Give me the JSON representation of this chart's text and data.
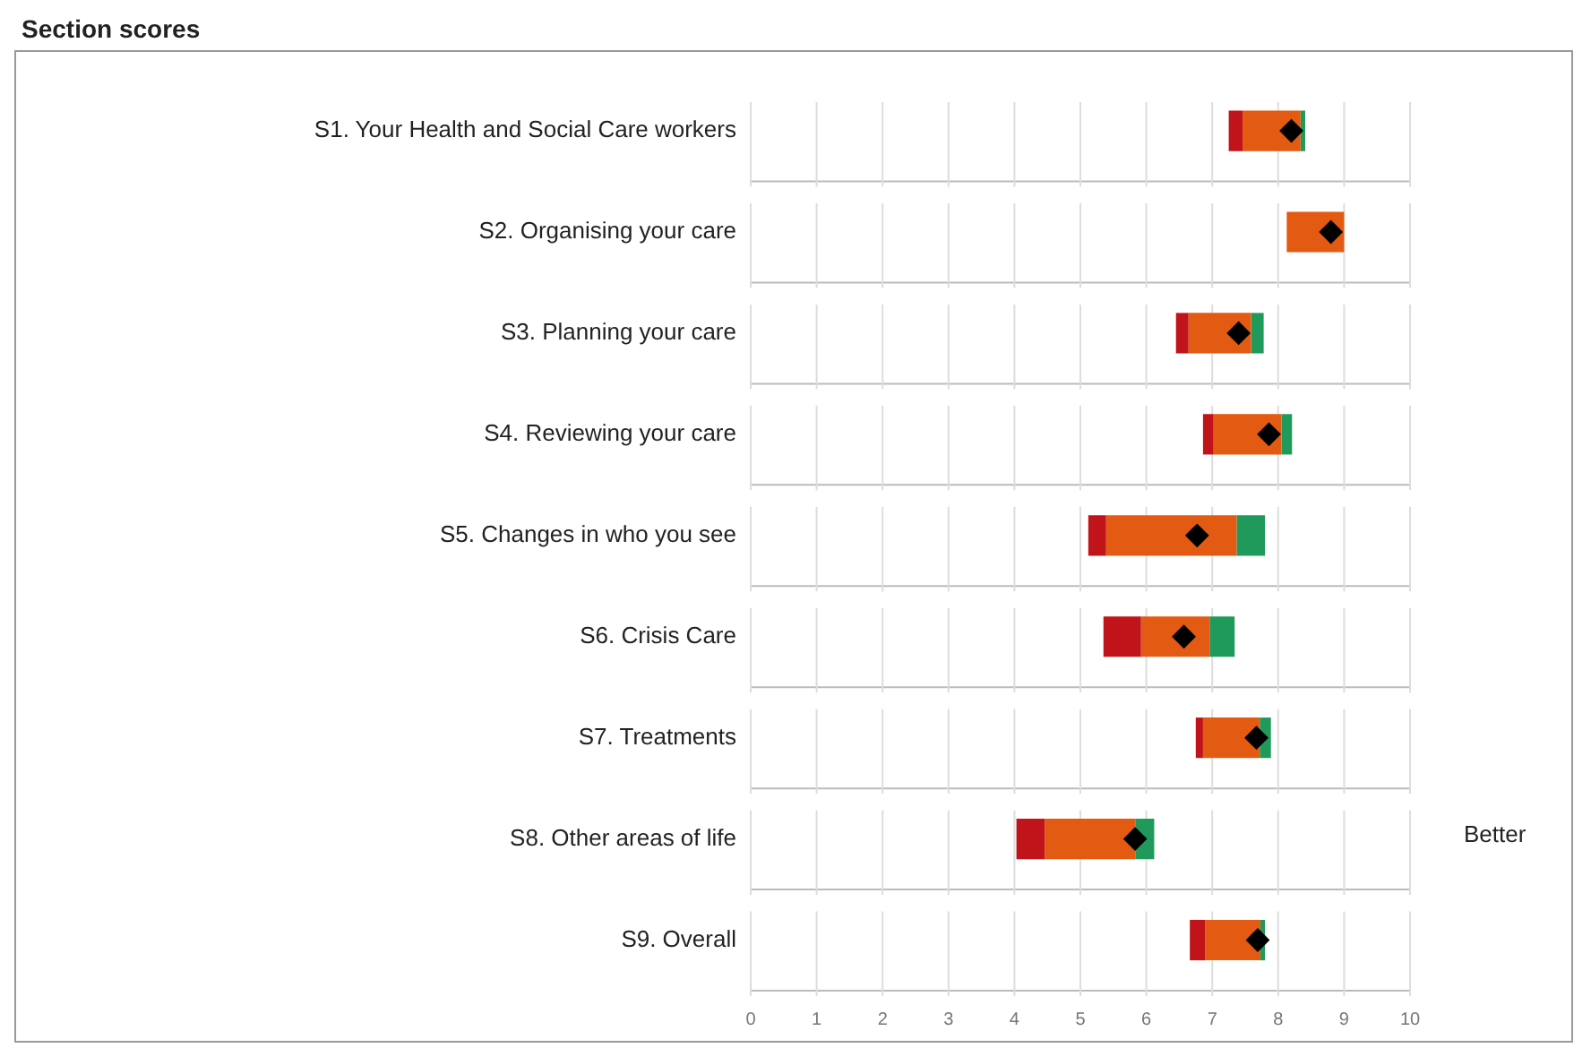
{
  "chart_data": {
    "type": "bar",
    "title": "Section scores",
    "orientation": "horizontal",
    "categories": [
      "S1. Your Health and Social Care workers",
      "S2. Organising your care",
      "S3. Planning your care",
      "S4. Reviewing your care",
      "S5. Changes in who you see",
      "S6. Crisis Care",
      "S7. Treatments",
      "S8. Other areas of life",
      "S9. Overall"
    ],
    "series": [
      {
        "color": "#c0141a",
        "base": [
          7.25,
          null,
          6.45,
          6.86,
          5.12,
          5.35,
          6.75,
          4.03,
          6.66
        ],
        "values": [
          0.21,
          null,
          0.19,
          0.16,
          0.27,
          0.57,
          0.11,
          0.43,
          0.23
        ]
      },
      {
        "color": "#e35a12",
        "base": [
          7.46,
          8.13,
          6.64,
          7.02,
          5.39,
          5.92,
          6.86,
          4.46,
          6.89
        ],
        "values": [
          0.88,
          0.87,
          0.95,
          1.03,
          1.98,
          1.04,
          0.86,
          1.38,
          0.84
        ]
      },
      {
        "color": "#1f9a5a",
        "base": [
          8.34,
          null,
          7.59,
          8.05,
          7.37,
          6.96,
          7.72,
          5.84,
          7.73
        ],
        "values": [
          0.07,
          null,
          0.19,
          0.16,
          0.43,
          0.38,
          0.17,
          0.28,
          0.07
        ]
      },
      {
        "type": "scatter",
        "color": "#000000",
        "marker": "diamond",
        "values": [
          8.2,
          8.8,
          7.4,
          7.86,
          6.77,
          6.57,
          7.67,
          5.83,
          7.69
        ]
      }
    ],
    "xlim": [
      0,
      10
    ],
    "xticks": [
      0,
      1,
      2,
      3,
      4,
      5,
      6,
      7,
      8,
      9,
      10
    ],
    "grid": "x",
    "legend": false,
    "annotations": [
      "Better"
    ]
  }
}
